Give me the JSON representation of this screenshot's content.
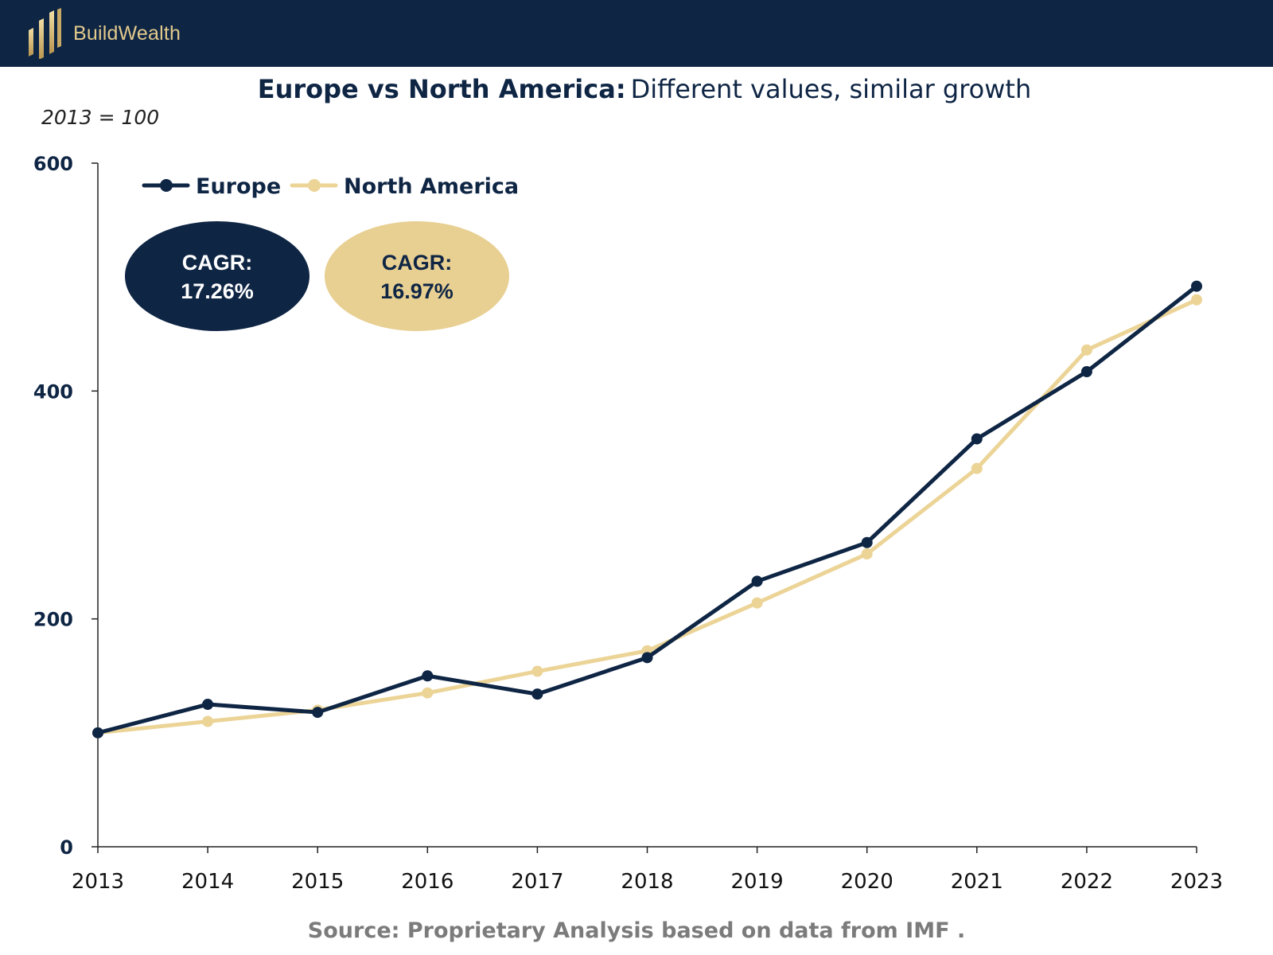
{
  "brand": {
    "name": "BuildWealth",
    "logo_icon": "bar-chart-logo-icon"
  },
  "colors": {
    "navy": "#0e2544",
    "gold": "#e8cf92",
    "gold_light": "#ecd497",
    "source_gray": "#7b7b7b"
  },
  "title": {
    "bold": "Europe vs North America:",
    "rest": "Different values, similar growth"
  },
  "subtitle": "2013 = 100",
  "source": "Source: Proprietary Analysis based on data from IMF .",
  "chart_data": {
    "type": "line",
    "x": [
      "2013",
      "2014",
      "2015",
      "2016",
      "2017",
      "2018",
      "2019",
      "2020",
      "2021",
      "2022",
      "2023"
    ],
    "ylim": [
      0,
      600
    ],
    "yticks": [
      "0",
      "200",
      "400",
      "600"
    ],
    "grid": false,
    "legend_position": "top-left",
    "series": [
      {
        "name": "Europe",
        "color": "#0e2544",
        "values": [
          100,
          125,
          118,
          150,
          134,
          166,
          233,
          267,
          358,
          417,
          492
        ]
      },
      {
        "name": "North America",
        "color": "#ecd497",
        "values": [
          100,
          110,
          120,
          135,
          154,
          172,
          214,
          257,
          332,
          436,
          480
        ]
      }
    ],
    "annotations": [
      {
        "series": "Europe",
        "label": "CAGR:",
        "value": "17.26%"
      },
      {
        "series": "North America",
        "label": "CAGR:",
        "value": "16.97%"
      }
    ]
  }
}
